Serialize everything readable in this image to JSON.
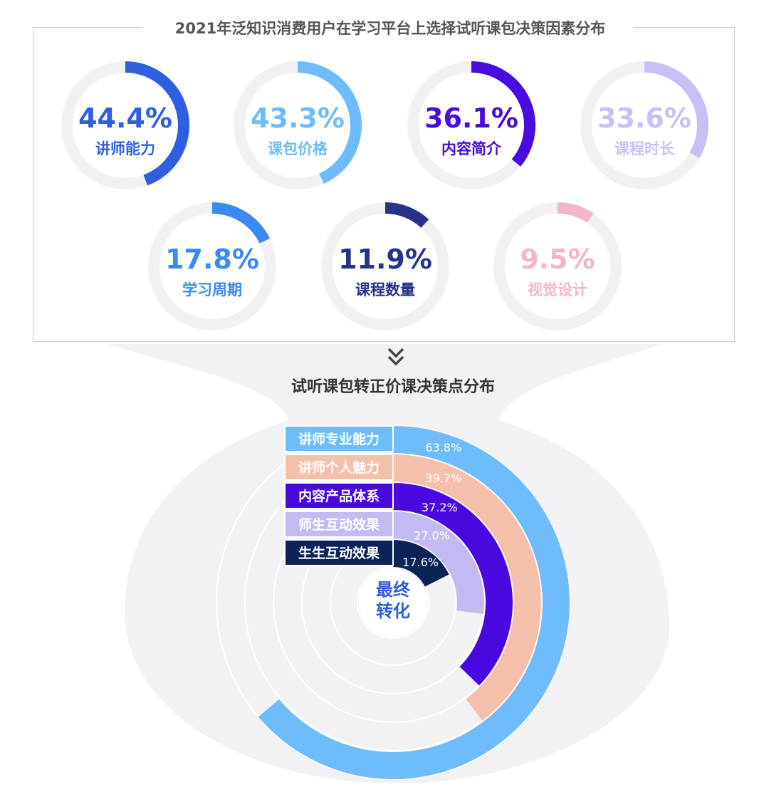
{
  "top_title": "2021年泛知识消费用户在学习平台上选择试听课包决策因素分布",
  "bottom_title": "试听课包转正价课决策点分布",
  "center_label_line1": "最终",
  "center_label_line2": "转化",
  "chart_data": [
    {
      "type": "pie",
      "subtype": "donut-grid",
      "title": "2021年泛知识消费用户在学习平台上选择试听课包决策因素分布",
      "items": [
        {
          "label": "讲师能力",
          "value": 44.4,
          "display": "44.4%",
          "color": "#2f5ee0"
        },
        {
          "label": "课包价格",
          "value": 43.3,
          "display": "43.3%",
          "color": "#6ebcfb"
        },
        {
          "label": "内容简介",
          "value": 36.1,
          "display": "36.1%",
          "color": "#4a0be0"
        },
        {
          "label": "课程时长",
          "value": 33.6,
          "display": "33.6%",
          "color": "#c9bff5"
        },
        {
          "label": "学习周期",
          "value": 17.8,
          "display": "17.8%",
          "color": "#3a8af0"
        },
        {
          "label": "课程数量",
          "value": 11.9,
          "display": "11.9%",
          "color": "#27338a"
        },
        {
          "label": "视觉设计",
          "value": 9.5,
          "display": "9.5%",
          "color": "#f2b6c9"
        }
      ]
    },
    {
      "type": "pie",
      "subtype": "radial-bar",
      "title": "试听课包转正价课决策点分布",
      "series": [
        {
          "name": "讲师专业能力",
          "value": 63.8,
          "display": "63.8%",
          "color": "#6ebcfb"
        },
        {
          "name": "讲师个人魅力",
          "value": 39.7,
          "display": "39.7%",
          "color": "#f5c0ab"
        },
        {
          "name": "内容产品体系",
          "value": 37.2,
          "display": "37.2%",
          "color": "#4a08e0"
        },
        {
          "name": "师生互动效果",
          "value": 27.0,
          "display": "27.0%",
          "color": "#c4baf3"
        },
        {
          "name": "生生互动效果",
          "value": 17.6,
          "display": "17.6%",
          "color": "#0c2357"
        }
      ]
    }
  ]
}
